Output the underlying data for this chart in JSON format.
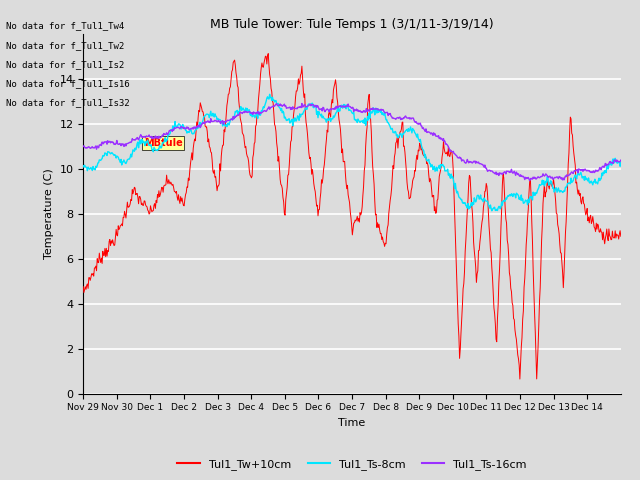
{
  "title": "MB Tule Tower: Tule Temps 1 (3/1/11-3/19/14)",
  "xlabel": "Time",
  "ylabel": "Temperature (C)",
  "ylim": [
    0,
    16
  ],
  "yticks": [
    0,
    2,
    4,
    6,
    8,
    10,
    12,
    14
  ],
  "bg_color": "#dcdcdc",
  "plot_bg_color": "#dcdcdc",
  "no_data_texts": [
    "No data for f_Tul1_Tw4",
    "No data for f_Tul1_Tw2",
    "No data for f_Tul1_Is2",
    "No data for f_Tul1_Is16",
    "No data for f_Tul1_Is32"
  ],
  "tooltip_text": "MBtule",
  "legend_entries": [
    "Tul1_Tw+10cm",
    "Tul1_Ts-8cm",
    "Tul1_Ts-16cm"
  ],
  "line_colors": [
    "#ff0000",
    "#00e5ff",
    "#9b30ff"
  ],
  "x_tick_labels": [
    "Nov 29",
    "Nov 30",
    "Dec 1",
    "Dec 2",
    "Dec 3",
    "Dec 4",
    "Dec 5",
    "Dec 6",
    "Dec 7",
    "Dec 8",
    "Dec 9",
    "Dec 10",
    "Dec 11",
    "Dec 12",
    "Dec 13",
    "Dec 14"
  ],
  "tw_base_x": [
    0,
    0.5,
    1,
    1.5,
    2,
    2.5,
    3,
    3.3,
    3.5,
    3.7,
    4,
    4.3,
    4.5,
    4.7,
    5,
    5.3,
    5.5,
    5.7,
    6,
    6.3,
    6.5,
    6.7,
    7,
    7.3,
    7.5,
    7.7,
    8,
    8.3,
    8.5,
    8.7,
    9,
    9.3,
    9.5,
    9.7,
    10,
    10.2,
    10.5,
    10.7,
    11,
    11.2,
    11.5,
    11.7,
    12,
    12.3,
    12.5,
    12.7,
    13,
    13.3,
    13.5,
    13.7,
    14,
    14.3,
    14.5,
    14.7,
    15,
    15.5,
    16
  ],
  "tw_base_y": [
    4.5,
    6,
    7,
    9,
    8,
    9.5,
    8.5,
    11,
    13,
    11.5,
    9,
    13,
    15,
    12,
    9.5,
    14.5,
    15,
    12,
    8,
    13,
    14.5,
    11,
    8,
    12,
    14,
    11,
    7.5,
    8,
    13.5,
    8,
    6.5,
    11,
    12,
    8.5,
    11,
    10.5,
    8,
    11,
    10.5,
    1.5,
    10,
    5,
    9.5,
    2,
    10,
    5,
    0.8,
    10,
    0.5,
    9,
    9.5,
    5,
    12.5,
    9,
    8,
    7,
    7
  ],
  "ts8_base_x": [
    0,
    1,
    2,
    3,
    4,
    4.5,
    5,
    5.5,
    6,
    6.5,
    7,
    7.5,
    8,
    8.5,
    9,
    9.5,
    10,
    10.5,
    11,
    11.5,
    12,
    12.5,
    13,
    13.5,
    14,
    15,
    16
  ],
  "ts8_base_y": [
    10.2,
    10.5,
    11.0,
    11.8,
    12.2,
    12.3,
    12.4,
    13.1,
    12.3,
    12.5,
    12.5,
    12.4,
    12.5,
    12.3,
    12.3,
    11.5,
    11.3,
    10.0,
    9.5,
    8.3,
    8.5,
    8.5,
    8.7,
    9.0,
    9.2,
    9.5,
    10.2
  ],
  "ts16_base_x": [
    0,
    1,
    2,
    3,
    4,
    5,
    6,
    7,
    8,
    9,
    10,
    10.5,
    11,
    11.5,
    12,
    12.5,
    13,
    13.5,
    14,
    15,
    16
  ],
  "ts16_base_y": [
    11.0,
    11.1,
    11.4,
    11.8,
    12.1,
    12.5,
    12.8,
    12.7,
    12.7,
    12.5,
    12.0,
    11.5,
    10.7,
    10.3,
    10.0,
    9.8,
    9.7,
    9.6,
    9.6,
    9.9,
    10.3
  ]
}
